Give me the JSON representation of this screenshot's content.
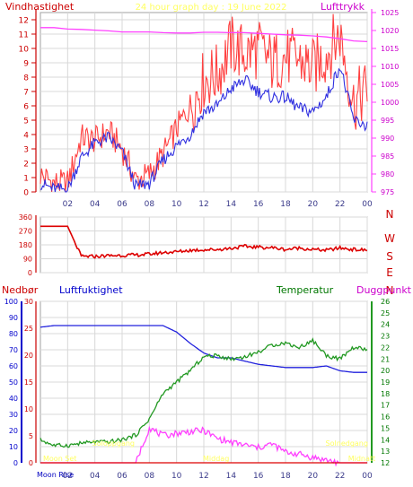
{
  "chart_data": [
    {
      "type": "line",
      "title": "24 hour graph day : 19 June 2022",
      "left_axis_label": "Vindhastighet",
      "right_axis_label": "Lufttrykk",
      "y_left_ticks": [
        "0",
        "1",
        "2",
        "3",
        "4",
        "5",
        "6",
        "7",
        "8",
        "9",
        "10",
        "11",
        "12"
      ],
      "y_left_lim": [
        0,
        12.5
      ],
      "y_right_ticks": [
        "975",
        "980",
        "985",
        "990",
        "995",
        "1000",
        "1005",
        "1010",
        "1015",
        "1020",
        "1025"
      ],
      "y_right_lim": [
        975,
        1025
      ],
      "x_ticks": [
        "02",
        "04",
        "06",
        "08",
        "10",
        "12",
        "14",
        "16",
        "18",
        "20",
        "22",
        "00"
      ],
      "x_hours": [
        0,
        1,
        2,
        3,
        4,
        5,
        6,
        7,
        8,
        9,
        10,
        11,
        12,
        13,
        14,
        15,
        16,
        17,
        18,
        19,
        20,
        21,
        22,
        23,
        24
      ],
      "series": [
        {
          "name": "Vindhastighet",
          "color": "#ff4040",
          "values": [
            1.2,
            0.6,
            0.6,
            3.8,
            3.6,
            4.2,
            3.0,
            0.8,
            1.2,
            2.6,
            4.4,
            6.0,
            7.8,
            8.2,
            10.2,
            9.6,
            10.0,
            9.0,
            9.4,
            9.2,
            8.6,
            9.6,
            11.0,
            6.2,
            7.2
          ]
        },
        {
          "color": "#3030e0",
          "values": [
            0.6,
            0.2,
            0.2,
            2.4,
            3.4,
            3.8,
            2.8,
            0.4,
            0.6,
            2.2,
            3.2,
            4.0,
            5.6,
            6.0,
            7.2,
            7.8,
            7.0,
            6.6,
            6.6,
            5.8,
            5.6,
            6.6,
            8.8,
            5.0,
            4.6
          ]
        },
        {
          "name": "Lufttrykk",
          "color": "#ff40ff",
          "axis": "right",
          "values": [
            1020.8,
            1020.8,
            1020.4,
            1020.3,
            1020.1,
            1019.9,
            1019.6,
            1019.6,
            1019.6,
            1019.4,
            1019.3,
            1019.3,
            1019.5,
            1019.5,
            1019.4,
            1019.4,
            1019.2,
            1019.0,
            1018.8,
            1018.7,
            1018.5,
            1018.2,
            1017.7,
            1017.1,
            1016.9
          ]
        }
      ]
    },
    {
      "type": "line",
      "y_ticks": [
        "360",
        "270",
        "180",
        "90",
        "0"
      ],
      "y_lim": [
        0,
        360
      ],
      "right_labels": [
        "N",
        "W",
        "S",
        "E",
        "N"
      ],
      "x_hours": [
        0,
        1,
        2,
        3,
        4,
        5,
        6,
        7,
        8,
        9,
        10,
        11,
        12,
        13,
        14,
        15,
        16,
        17,
        18,
        19,
        20,
        21,
        22,
        23,
        24
      ],
      "series": [
        {
          "color": "#dd0000",
          "values": [
            300,
            300,
            300,
            105,
            105,
            110,
            112,
            114,
            120,
            130,
            135,
            145,
            148,
            150,
            158,
            170,
            165,
            162,
            150,
            160,
            150,
            145,
            160,
            150,
            145
          ]
        }
      ]
    },
    {
      "type": "line",
      "labels": {
        "precipitation": "Nedbør",
        "humidity": "Luftfuktighet",
        "temperature": "Temperatur",
        "dewpoint": "Duggpunkt"
      },
      "y_left_ticks": [
        "0",
        "10",
        "20",
        "30",
        "40",
        "50",
        "60",
        "70",
        "80",
        "90",
        "100"
      ],
      "y_left_lim": [
        0,
        100
      ],
      "y_mid_ticks": [
        "0",
        "5",
        "10",
        "15",
        "20",
        "25",
        "30"
      ],
      "y_mid_lim": [
        0,
        30
      ],
      "y_right_ticks": [
        "12",
        "13",
        "14",
        "15",
        "16",
        "17",
        "18",
        "19",
        "20",
        "21",
        "22",
        "23",
        "24",
        "25",
        "26"
      ],
      "y_right_lim": [
        12,
        26
      ],
      "x_ticks": [
        "02",
        "04",
        "06",
        "08",
        "10",
        "12",
        "14",
        "16",
        "18",
        "20",
        "22",
        "00"
      ],
      "x_hours": [
        0,
        1,
        2,
        3,
        4,
        5,
        6,
        7,
        8,
        9,
        10,
        11,
        12,
        13,
        14,
        15,
        16,
        17,
        18,
        19,
        20,
        21,
        22,
        23,
        24
      ],
      "annotations": [
        {
          "text": "Moon Set",
          "hour": 0.1,
          "color": "#ffff60"
        },
        {
          "text": "Moon Rise",
          "hour": 0.1,
          "color": "#0000c0"
        },
        {
          "text": "Soloppgang",
          "hour": 3.8,
          "color": "#ffff60"
        },
        {
          "text": "Middag",
          "hour": 12.9,
          "color": "#ffff60"
        },
        {
          "text": "Solnedgang",
          "hour": 22.5,
          "color": "#ffff60"
        },
        {
          "text": "Midnatt",
          "hour": 23.6,
          "color": "#ffff60"
        }
      ],
      "series": [
        {
          "name": "Luftfuktighet",
          "color": "#2222dd",
          "axis": "left",
          "values": [
            84,
            85,
            85,
            85,
            85,
            85,
            85,
            85,
            85,
            85,
            81,
            74,
            68,
            65,
            65,
            63,
            61,
            60,
            59,
            59,
            59,
            60,
            57,
            56,
            56
          ]
        },
        {
          "name": "Temperatur",
          "color": "#229922",
          "axis": "right",
          "values": [
            14.0,
            13.5,
            13.5,
            13.7,
            13.8,
            13.8,
            14.0,
            14.4,
            15.8,
            18.0,
            19.0,
            20.0,
            21.2,
            21.3,
            21.0,
            21.2,
            21.6,
            22.2,
            22.4,
            22.0,
            22.6,
            21.3,
            21.0,
            22.0,
            21.8
          ]
        },
        {
          "name": "Duggpunkt",
          "color": "#ff40ff",
          "axis": "mid",
          "values": [
            0,
            0,
            0,
            0,
            0,
            0,
            0,
            0,
            6.5,
            5.0,
            5.5,
            5.8,
            6.0,
            4.5,
            3.8,
            3.3,
            2.8,
            3.5,
            2.0,
            1.6,
            1.0,
            0.5,
            0,
            0,
            0
          ]
        },
        {
          "name": "Nedbør",
          "color": "#dd0000",
          "axis": "left",
          "values": [
            0,
            0,
            0,
            0,
            0,
            0,
            0,
            0,
            0,
            0,
            0,
            0,
            0,
            0,
            0,
            0,
            0,
            0,
            0,
            0,
            0,
            0,
            0,
            0,
            0
          ]
        }
      ]
    }
  ]
}
